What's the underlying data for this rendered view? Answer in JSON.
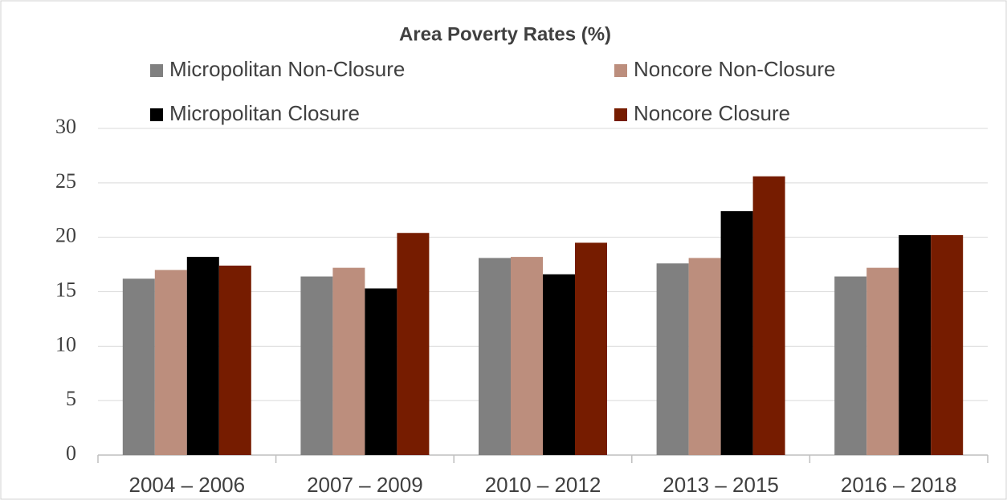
{
  "chart_data": {
    "type": "bar",
    "title": "Area Poverty Rates (%)",
    "categories": [
      "2004 – 2006",
      "2007 – 2009",
      "2010 – 2012",
      "2013 – 2015",
      "2016 – 2018"
    ],
    "series": [
      {
        "name": "Micropolitan Non-Closure",
        "color": "#808080",
        "values": [
          16.2,
          16.4,
          18.1,
          17.6,
          16.4
        ]
      },
      {
        "name": "Noncore Non-Closure",
        "color": "#bc8e7d",
        "values": [
          17.0,
          17.2,
          18.2,
          18.1,
          17.2
        ]
      },
      {
        "name": "Micropolitan Closure",
        "color": "#000000",
        "values": [
          18.2,
          15.3,
          16.6,
          22.4,
          20.2
        ]
      },
      {
        "name": "Noncore Closure",
        "color": "#761c00",
        "values": [
          17.4,
          20.4,
          19.5,
          25.6,
          20.2
        ]
      }
    ],
    "ylim": [
      0,
      30
    ],
    "yticks": [
      0,
      5,
      10,
      15,
      20,
      25,
      30
    ],
    "grid": true
  }
}
